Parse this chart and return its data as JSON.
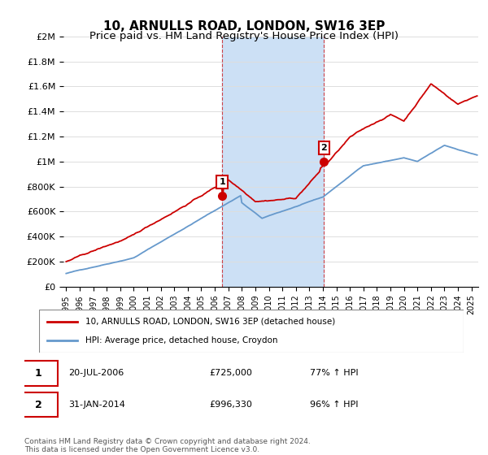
{
  "title": "10, ARNULLS ROAD, LONDON, SW16 3EP",
  "subtitle": "Price paid vs. HM Land Registry's House Price Index (HPI)",
  "title_fontsize": 11,
  "subtitle_fontsize": 9.5,
  "ylabel_ticks": [
    "£0",
    "£200K",
    "£400K",
    "£600K",
    "£800K",
    "£1M",
    "£1.2M",
    "£1.4M",
    "£1.6M",
    "£1.8M",
    "£2M"
  ],
  "ylabel_values": [
    0,
    200000,
    400000,
    600000,
    800000,
    1000000,
    1200000,
    1400000,
    1600000,
    1800000,
    2000000
  ],
  "ylim": [
    0,
    2000000
  ],
  "sale1_x": 2006.542,
  "sale1_price": 725000,
  "sale2_x": 2014.083,
  "sale2_price": 996330,
  "legend_line1": "10, ARNULLS ROAD, LONDON, SW16 3EP (detached house)",
  "legend_line2": "HPI: Average price, detached house, Croydon",
  "footnote": "Contains HM Land Registry data © Crown copyright and database right 2024.\nThis data is licensed under the Open Government Licence v3.0.",
  "property_color": "#cc0000",
  "hpi_color": "#6699cc",
  "shade_color": "#cce0f5",
  "background_color": "#ffffff",
  "grid_color": "#dddddd"
}
